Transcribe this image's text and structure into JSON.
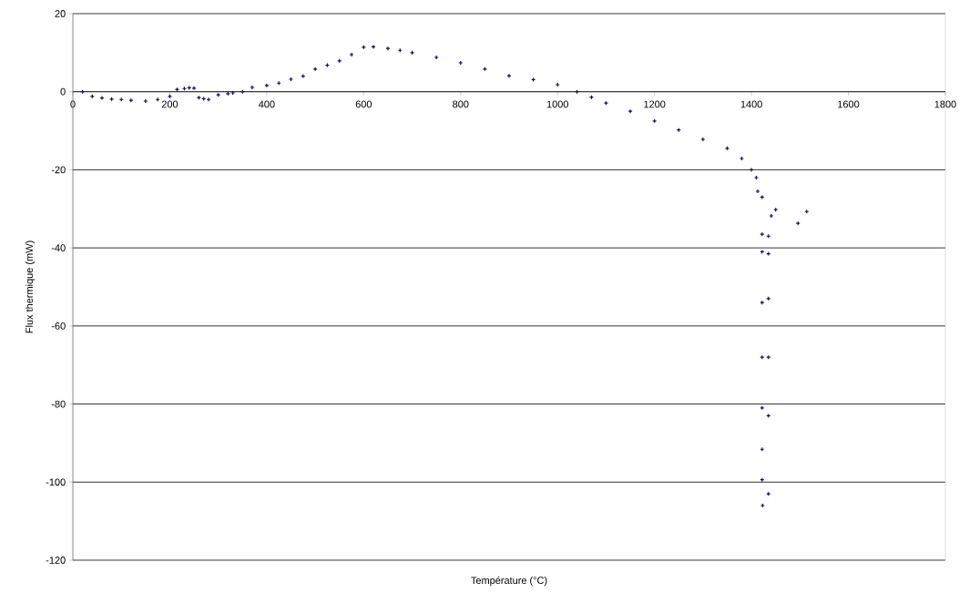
{
  "chart_data": {
    "type": "scatter",
    "xlabel": "Température (°C)",
    "ylabel": "Flux thermique (mW)",
    "x": [
      20,
      40,
      60,
      80,
      100,
      120,
      150,
      175,
      200,
      215,
      230,
      240,
      250,
      260,
      270,
      280,
      300,
      320,
      330,
      350,
      370,
      400,
      425,
      450,
      475,
      500,
      525,
      550,
      575,
      600,
      620,
      650,
      675,
      700,
      750,
      800,
      850,
      900,
      950,
      1000,
      1040,
      1070,
      1100,
      1150,
      1200,
      1250,
      1300,
      1350,
      1380,
      1400,
      1410,
      1413,
      1422,
      1422,
      1422,
      1422,
      1422,
      1422,
      1422,
      1422,
      1423,
      1435,
      1435,
      1435,
      1435,
      1435,
      1435,
      1441,
      1450,
      1496,
      1514
    ],
    "values": [
      0,
      -1.2,
      -1.6,
      -1.9,
      -2,
      -2.2,
      -2.4,
      -2,
      -1.2,
      0.6,
      0.8,
      1,
      0.9,
      -1.5,
      -1.8,
      -2,
      -0.8,
      -0.5,
      -0.3,
      0,
      1.1,
      1.6,
      2.2,
      3.2,
      4,
      5.8,
      6.8,
      7.9,
      9.5,
      11.4,
      11.5,
      11.1,
      10.6,
      10,
      8.8,
      7.4,
      5.8,
      4.1,
      3.1,
      1.8,
      0,
      -1.4,
      -2.9,
      -5,
      -7.5,
      -9.8,
      -12.2,
      -14.5,
      -17.1,
      -20,
      -22,
      -25.5,
      -27,
      -36.5,
      -41,
      -54,
      -68,
      -81,
      -91.6,
      -99.4,
      -106,
      -103,
      -83,
      -68,
      -53,
      -41.5,
      -37,
      -31.8,
      -30.2,
      -33.7,
      -30.7
    ],
    "color": "#0d0d6b",
    "marker": "cross",
    "xlim": [
      0,
      1800
    ],
    "xticks": [
      0,
      200,
      400,
      600,
      800,
      1000,
      1200,
      1400,
      1600,
      1800
    ],
    "ylim": [
      -120,
      20
    ],
    "yticks": [
      -120,
      -100,
      -80,
      -60,
      -40,
      -20,
      0,
      20
    ],
    "grid": "y"
  }
}
